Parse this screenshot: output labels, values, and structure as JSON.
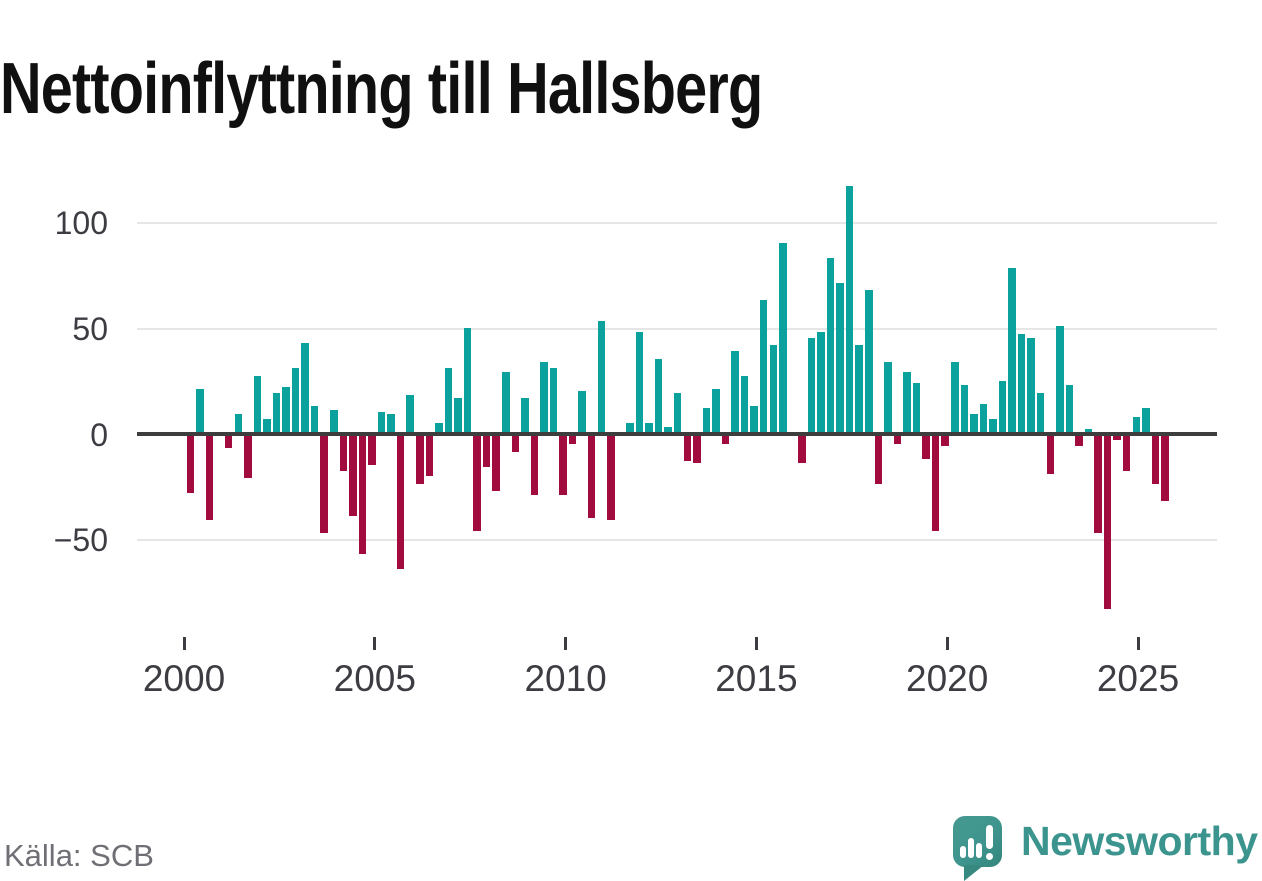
{
  "title": "Nettoinflyttning till Hallsberg",
  "source": {
    "label": "Källa: SCB"
  },
  "branding": {
    "name": "Newsworthy",
    "color": "#3b948d"
  },
  "colors": {
    "positive_bar": "#0ba29d",
    "negative_bar": "#a10b3e",
    "zero_line": "#3d3d3d",
    "gridline": "#e6e6e6",
    "axis_text": "#3c3c42"
  },
  "chart_data": {
    "type": "bar",
    "title": "Nettoinflyttning till Hallsberg",
    "frequency": "quarterly",
    "x_start": "2000Q1",
    "x_end": "2025Q3",
    "xlabel": "",
    "ylabel": "",
    "ylim": [
      -85,
      120
    ],
    "grid": "horizontal",
    "y_ticks": [
      100,
      50,
      0,
      -50
    ],
    "y_tick_labels": [
      "100",
      "50",
      "0",
      "−50"
    ],
    "x_tick_years": [
      "2000",
      "2005",
      "2010",
      "2015",
      "2020",
      "2025"
    ],
    "categories": [
      "2000Q1",
      "2000Q2",
      "2000Q3",
      "2000Q4",
      "2001Q1",
      "2001Q2",
      "2001Q3",
      "2001Q4",
      "2002Q1",
      "2002Q2",
      "2002Q3",
      "2002Q4",
      "2003Q1",
      "2003Q2",
      "2003Q3",
      "2003Q4",
      "2004Q1",
      "2004Q2",
      "2004Q3",
      "2004Q4",
      "2005Q1",
      "2005Q2",
      "2005Q3",
      "2005Q4",
      "2006Q1",
      "2006Q2",
      "2006Q3",
      "2006Q4",
      "2007Q1",
      "2007Q2",
      "2007Q3",
      "2007Q4",
      "2008Q1",
      "2008Q2",
      "2008Q3",
      "2008Q4",
      "2009Q1",
      "2009Q2",
      "2009Q3",
      "2009Q4",
      "2010Q1",
      "2010Q2",
      "2010Q3",
      "2010Q4",
      "2011Q1",
      "2011Q2",
      "2011Q3",
      "2011Q4",
      "2012Q1",
      "2012Q2",
      "2012Q3",
      "2012Q4",
      "2013Q1",
      "2013Q2",
      "2013Q3",
      "2013Q4",
      "2014Q1",
      "2014Q2",
      "2014Q3",
      "2014Q4",
      "2015Q1",
      "2015Q2",
      "2015Q3",
      "2015Q4",
      "2016Q1",
      "2016Q2",
      "2016Q3",
      "2016Q4",
      "2017Q1",
      "2017Q2",
      "2017Q3",
      "2017Q4",
      "2018Q1",
      "2018Q2",
      "2018Q3",
      "2018Q4",
      "2019Q1",
      "2019Q2",
      "2019Q3",
      "2019Q4",
      "2020Q1",
      "2020Q2",
      "2020Q3",
      "2020Q4",
      "2021Q1",
      "2021Q2",
      "2021Q3",
      "2021Q4",
      "2022Q1",
      "2022Q2",
      "2022Q3",
      "2022Q4",
      "2023Q1",
      "2023Q2",
      "2023Q3",
      "2023Q4",
      "2024Q1",
      "2024Q2",
      "2024Q3",
      "2024Q4",
      "2025Q1",
      "2025Q2",
      "2025Q3"
    ],
    "series": [
      {
        "name": "Nettoinflyttning",
        "values": [
          -27,
          21,
          -40,
          0,
          -6,
          9,
          -20,
          27,
          7,
          19,
          22,
          31,
          43,
          13,
          -46,
          11,
          -17,
          -38,
          -56,
          -14,
          10,
          9,
          -63,
          18,
          -23,
          -19,
          5,
          31,
          17,
          50,
          -45,
          -15,
          -26,
          29,
          -8,
          17,
          -28,
          34,
          31,
          -28,
          -4,
          20,
          -39,
          53,
          -40,
          0,
          5,
          48,
          5,
          35,
          3,
          19,
          -12,
          -13,
          12,
          21,
          -4,
          39,
          27,
          13,
          63,
          42,
          90,
          0,
          -13,
          45,
          48,
          83,
          71,
          117,
          42,
          68,
          -23,
          34,
          -4,
          29,
          24,
          -11,
          -45,
          -5,
          34,
          23,
          9,
          14,
          7,
          25,
          78,
          47,
          45,
          19,
          -18,
          51,
          23,
          -5,
          2,
          -46,
          -82,
          -2,
          -17,
          8,
          12,
          -23,
          -31
        ]
      }
    ]
  }
}
